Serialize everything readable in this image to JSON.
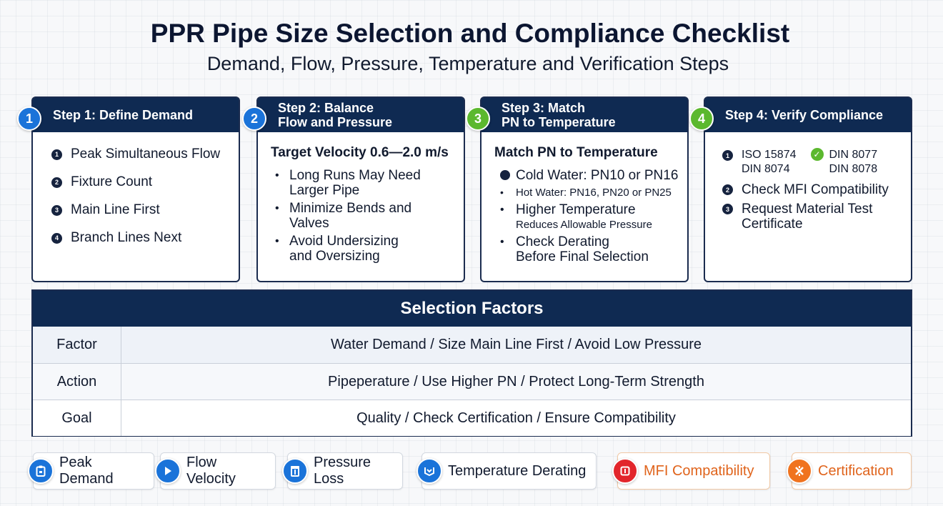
{
  "title": "PPR Pipe Size Selection and Compliance Checklist",
  "subtitle": "Demand, Flow, Pressure, Temperature and Verification Steps",
  "colors": {
    "navy": "#0f2a52",
    "blue": "#1a73d9",
    "green": "#5bb82e",
    "red": "#e2252b",
    "orange": "#f0731f"
  },
  "steps": [
    {
      "number": "1",
      "title": "Step 1: Define Demand",
      "items": [
        {
          "n": "1",
          "text": "Peak Simultaneous Flow"
        },
        {
          "n": "2",
          "text": "Fixture Count"
        },
        {
          "n": "3",
          "text": "Main Line First"
        },
        {
          "n": "4",
          "text": "Branch Lines Next"
        }
      ]
    },
    {
      "number": "2",
      "title": "Step 2: Balance\nFlow and Pressure",
      "subheading": "Target Velocity 0.6—2.0 m/s",
      "bullets": [
        "Long Runs May Need\nLarger Pipe",
        "Minimize Bends and\nValves",
        "Avoid Undersizing\nand Oversizing"
      ]
    },
    {
      "number": "3",
      "title": "Step 3: Match\nPN to Temperature",
      "subheading": "Match PN to Temperature",
      "items": [
        "Cold Water: PN10 or PN16",
        "Hot Water: PN16, PN20 or PN25",
        "Higher Temperature",
        "Reduces Allowable Pressure",
        "Check Derating\nBefore Final Selection"
      ]
    },
    {
      "number": "4",
      "title": "Step 4: Verify Compliance",
      "standards_left": "ISO 15874\nDIN 8074",
      "standards_right": "DIN 8077\nDIN 8078",
      "items": [
        "Check MFI Compatibility",
        "Request Material Test\nCertificate"
      ]
    }
  ],
  "table": {
    "heading": "Selection Factors",
    "rows": [
      {
        "label": "Factor",
        "value": "Water Demand / Size Main Line First / Avoid Low Pressure"
      },
      {
        "label": "Action",
        "value": "Pipeperature / Use Higher PN / Protect Long-Term Strength"
      },
      {
        "label": "Goal",
        "value": "Quality / Check Certification / Ensure Compatibility"
      }
    ]
  },
  "chips": [
    {
      "label": "Peak Demand",
      "icon": "clipboard-icon"
    },
    {
      "label": "Flow Velocity",
      "icon": "play-icon"
    },
    {
      "label": "Pressure Loss",
      "icon": "gauge-icon"
    },
    {
      "label": "Temperature Derating",
      "icon": "thermo-icon"
    },
    {
      "label": "MFI Compatibility",
      "icon": "alert-icon"
    },
    {
      "label": "Certification",
      "icon": "certificate-icon"
    }
  ]
}
